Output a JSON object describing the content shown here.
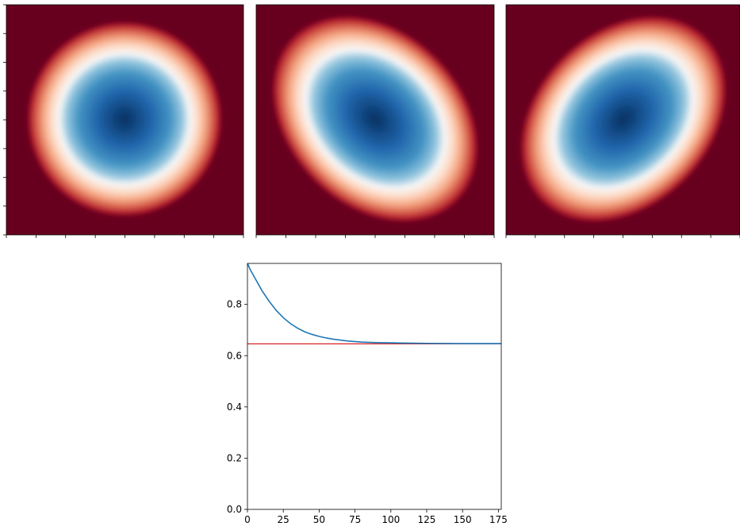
{
  "chart_data": [
    {
      "type": "heatmap",
      "panel": 1,
      "colormap": "RdBu",
      "blob": {
        "shape": "circular",
        "center": [
          0.5,
          0.5
        ],
        "orientation": "none"
      },
      "axes": {
        "ticks_labeled": false,
        "x_ticks": 9,
        "y_ticks": 9
      }
    },
    {
      "type": "heatmap",
      "panel": 2,
      "colormap": "RdBu",
      "blob": {
        "shape": "elongated",
        "center": [
          0.5,
          0.5
        ],
        "orientation": "upper-left to lower-right"
      },
      "axes": {
        "ticks_labeled": false,
        "x_ticks": 9,
        "y_ticks": 0
      }
    },
    {
      "type": "heatmap",
      "panel": 3,
      "colormap": "RdBu",
      "blob": {
        "shape": "elongated",
        "center": [
          0.5,
          0.5
        ],
        "orientation": "lower-left to upper-right"
      },
      "axes": {
        "ticks_labeled": false,
        "x_ticks": 9,
        "y_ticks": 0
      }
    },
    {
      "type": "line",
      "title": "",
      "xlabel": "",
      "ylabel": "",
      "xlim": [
        0,
        177
      ],
      "ylim": [
        0.0,
        0.96
      ],
      "xticks": [
        0,
        25,
        50,
        75,
        100,
        125,
        150,
        175
      ],
      "yticks": [
        0.0,
        0.2,
        0.4,
        0.6,
        0.8
      ],
      "xtick_labels": [
        "0",
        "25",
        "50",
        "75",
        "100",
        "125",
        "150",
        "175"
      ],
      "ytick_labels": [
        "0.0",
        "0.2",
        "0.4",
        "0.6",
        "0.8"
      ],
      "grid": false,
      "series": [
        {
          "color": "#1f77b4",
          "x": [
            0,
            2,
            5,
            10,
            15,
            20,
            25,
            30,
            35,
            40,
            45,
            50,
            55,
            60,
            70,
            80,
            90,
            100,
            110,
            125,
            150,
            177
          ],
          "y": [
            0.96,
            0.935,
            0.905,
            0.855,
            0.813,
            0.777,
            0.748,
            0.725,
            0.707,
            0.693,
            0.683,
            0.675,
            0.669,
            0.664,
            0.657,
            0.653,
            0.651,
            0.65,
            0.649,
            0.648,
            0.647,
            0.647
          ]
        }
      ],
      "hlines": [
        {
          "y": 0.646,
          "color": "#d62728"
        }
      ]
    }
  ]
}
